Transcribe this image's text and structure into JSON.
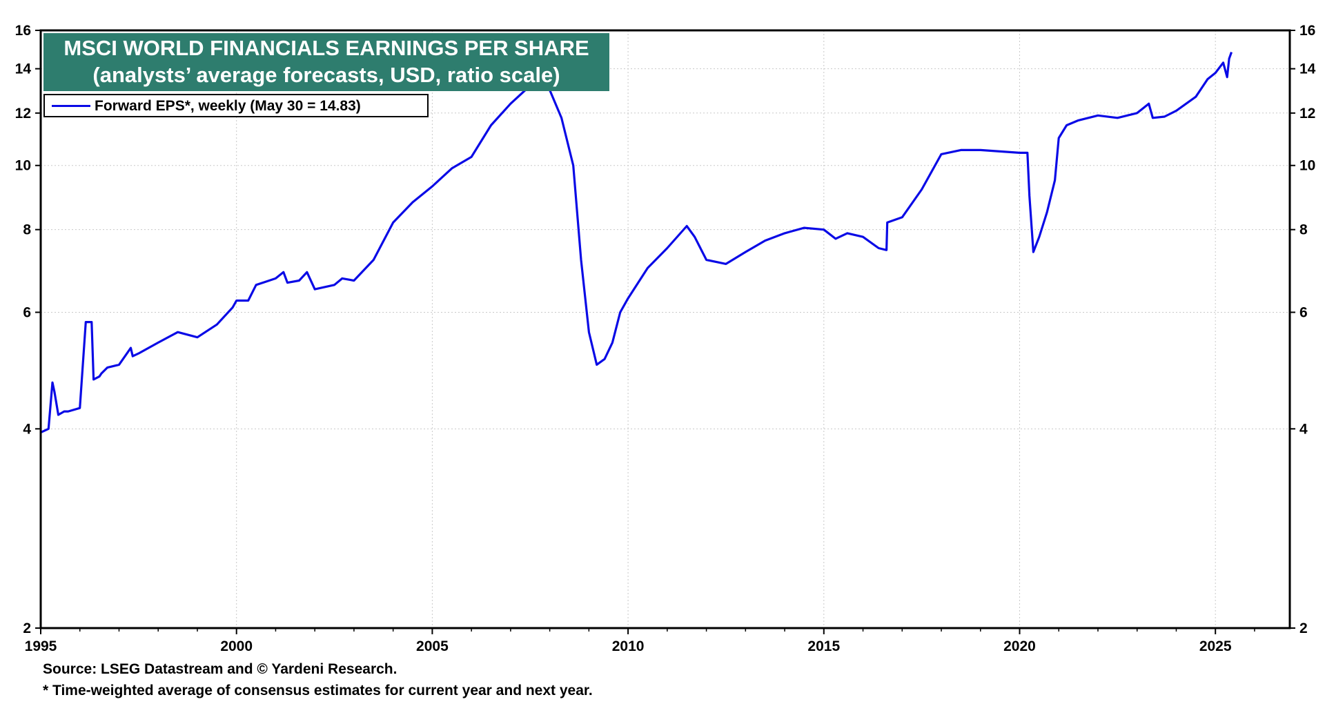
{
  "title": {
    "line1": "MSCI WORLD FINANCIALS EARNINGS PER SHARE",
    "line2": "(analysts’ average forecasts, USD, ratio scale)"
  },
  "legend": {
    "label": "Forward EPS*, weekly (May 30 = 14.83)"
  },
  "footnotes": {
    "source": "Source: LSEG Datastream and © Yardeni Research.",
    "note": "* Time-weighted average of consensus estimates for current year and next year."
  },
  "colors": {
    "series": "#0a0ae6",
    "title_bg": "#2e7d6e",
    "grid": "#c8c8c8"
  },
  "chart_data": {
    "type": "line",
    "y_scale": "log",
    "ylim": [
      2,
      16
    ],
    "xlim": [
      1995,
      2026.9
    ],
    "x_ticks": [
      1995,
      2000,
      2005,
      2010,
      2015,
      2020,
      2025
    ],
    "x_tick_labels": [
      "1995",
      "2000",
      "2005",
      "2010",
      "2015",
      "2020",
      "2025"
    ],
    "y_ticks": [
      2,
      4,
      6,
      8,
      10,
      12,
      14,
      16
    ],
    "y_tick_labels": [
      "2",
      "4",
      "6",
      "8",
      "10",
      "12",
      "14",
      "16"
    ],
    "grid": true,
    "legend_position": "top-left",
    "series": [
      {
        "name": "Forward EPS*, weekly (May 30 = 14.83)",
        "x": [
          1995.0,
          1995.2,
          1995.3,
          1995.35,
          1995.45,
          1995.6,
          1995.7,
          1996.0,
          1996.15,
          1996.3,
          1996.35,
          1996.5,
          1996.55,
          1996.7,
          1997.0,
          1997.3,
          1997.35,
          1997.5,
          1998.0,
          1998.5,
          1999.0,
          1999.5,
          1999.9,
          2000.0,
          2000.3,
          2000.5,
          2001.0,
          2001.2,
          2001.3,
          2001.6,
          2001.8,
          2002.0,
          2002.5,
          2002.7,
          2003.0,
          2003.5,
          2004.0,
          2004.5,
          2005.0,
          2005.5,
          2006.0,
          2006.5,
          2007.0,
          2007.5,
          2007.8,
          2008.0,
          2008.3,
          2008.6,
          2008.8,
          2009.0,
          2009.2,
          2009.4,
          2009.6,
          2009.8,
          2010.0,
          2010.5,
          2011.0,
          2011.5,
          2011.7,
          2012.0,
          2012.5,
          2013.0,
          2013.5,
          2014.0,
          2014.5,
          2015.0,
          2015.3,
          2015.6,
          2016.0,
          2016.4,
          2016.6,
          2016.62,
          2017.0,
          2017.5,
          2018.0,
          2018.5,
          2019.0,
          2019.5,
          2020.0,
          2020.2,
          2020.25,
          2020.35,
          2020.5,
          2020.7,
          2020.9,
          2021.0,
          2021.2,
          2021.5,
          2022.0,
          2022.5,
          2023.0,
          2023.3,
          2023.4,
          2023.7,
          2024.0,
          2024.5,
          2024.8,
          2025.0,
          2025.2,
          2025.3,
          2025.35,
          2025.41
        ],
        "y": [
          3.95,
          4.0,
          4.7,
          4.55,
          4.2,
          4.25,
          4.25,
          4.3,
          5.8,
          5.8,
          4.75,
          4.8,
          4.85,
          4.95,
          5.0,
          5.3,
          5.15,
          5.2,
          5.4,
          5.6,
          5.5,
          5.75,
          6.1,
          6.25,
          6.25,
          6.6,
          6.75,
          6.9,
          6.65,
          6.7,
          6.9,
          6.5,
          6.6,
          6.75,
          6.7,
          7.2,
          8.2,
          8.8,
          9.3,
          9.9,
          10.3,
          11.5,
          12.4,
          13.2,
          13.5,
          13.0,
          11.8,
          10.0,
          7.2,
          5.6,
          5.0,
          5.1,
          5.4,
          6.0,
          6.3,
          7.0,
          7.5,
          8.1,
          7.8,
          7.2,
          7.1,
          7.4,
          7.7,
          7.9,
          8.05,
          8.0,
          7.75,
          7.9,
          7.8,
          7.5,
          7.45,
          8.2,
          8.35,
          9.2,
          10.4,
          10.55,
          10.55,
          10.5,
          10.45,
          10.45,
          9.0,
          7.4,
          7.8,
          8.5,
          9.5,
          11.0,
          11.5,
          11.7,
          11.9,
          11.8,
          12.0,
          12.4,
          11.8,
          11.85,
          12.1,
          12.7,
          13.5,
          13.8,
          14.3,
          13.6,
          14.5,
          14.83
        ]
      }
    ]
  }
}
